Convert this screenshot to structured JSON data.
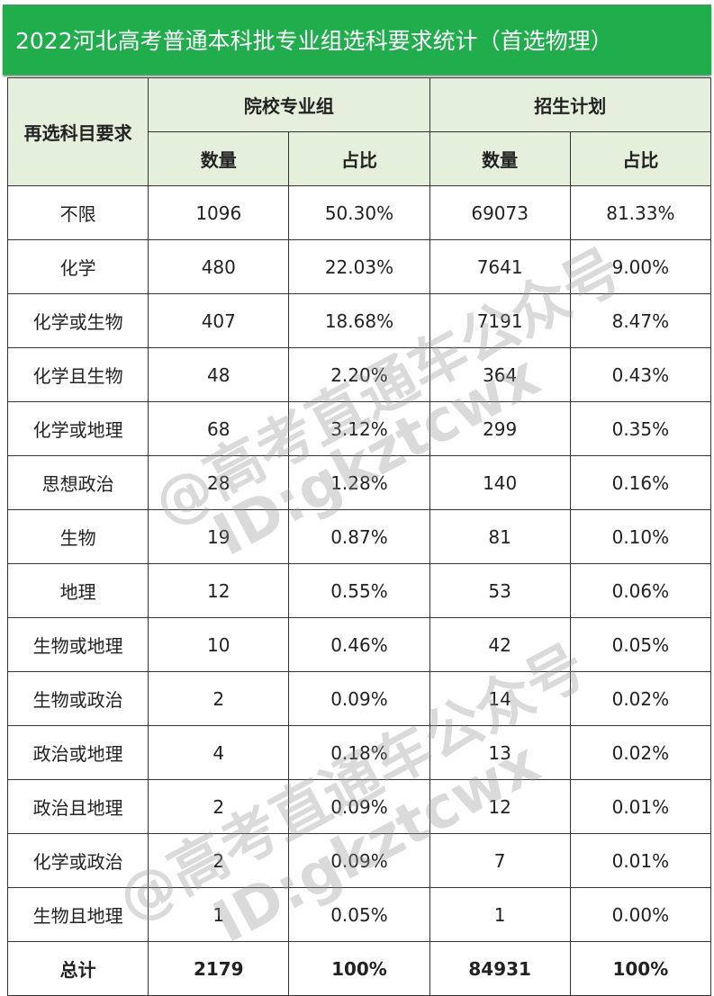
{
  "title": "2022河北高考普通本科批专业组选科要求统计（首选物理）",
  "headers": {
    "requirement": "再选科目要求",
    "group": "院校专业组",
    "plan": "招生计划",
    "count": "数量",
    "ratio": "占比"
  },
  "rows": [
    [
      "不限",
      "1096",
      "50.30%",
      "69073",
      "81.33%"
    ],
    [
      "化学",
      "480",
      "22.03%",
      "7641",
      "9.00%"
    ],
    [
      "化学或生物",
      "407",
      "18.68%",
      "7191",
      "8.47%"
    ],
    [
      "化学且生物",
      "48",
      "2.20%",
      "364",
      "0.43%"
    ],
    [
      "化学或地理",
      "68",
      "3.12%",
      "299",
      "0.35%"
    ],
    [
      "思想政治",
      "28",
      "1.28%",
      "140",
      "0.16%"
    ],
    [
      "生物",
      "19",
      "0.87%",
      "81",
      "0.10%"
    ],
    [
      "地理",
      "12",
      "0.55%",
      "53",
      "0.06%"
    ],
    [
      "生物或地理",
      "10",
      "0.46%",
      "42",
      "0.05%"
    ],
    [
      "生物或政治",
      "2",
      "0.09%",
      "14",
      "0.02%"
    ],
    [
      "政治或地理",
      "4",
      "0.18%",
      "13",
      "0.02%"
    ],
    [
      "政治且地理",
      "2",
      "0.09%",
      "12",
      "0.01%"
    ],
    [
      "化学或政治",
      "2",
      "0.09%",
      "7",
      "0.01%"
    ],
    [
      "生物且地理",
      "1",
      "0.05%",
      "1",
      "0.00%"
    ]
  ],
  "total": [
    "总计",
    "2179",
    "100%",
    "84931",
    "100%"
  ],
  "watermark": {
    "line1": "@高考直通车公众号",
    "line2": "ID:gkztcwx"
  }
}
